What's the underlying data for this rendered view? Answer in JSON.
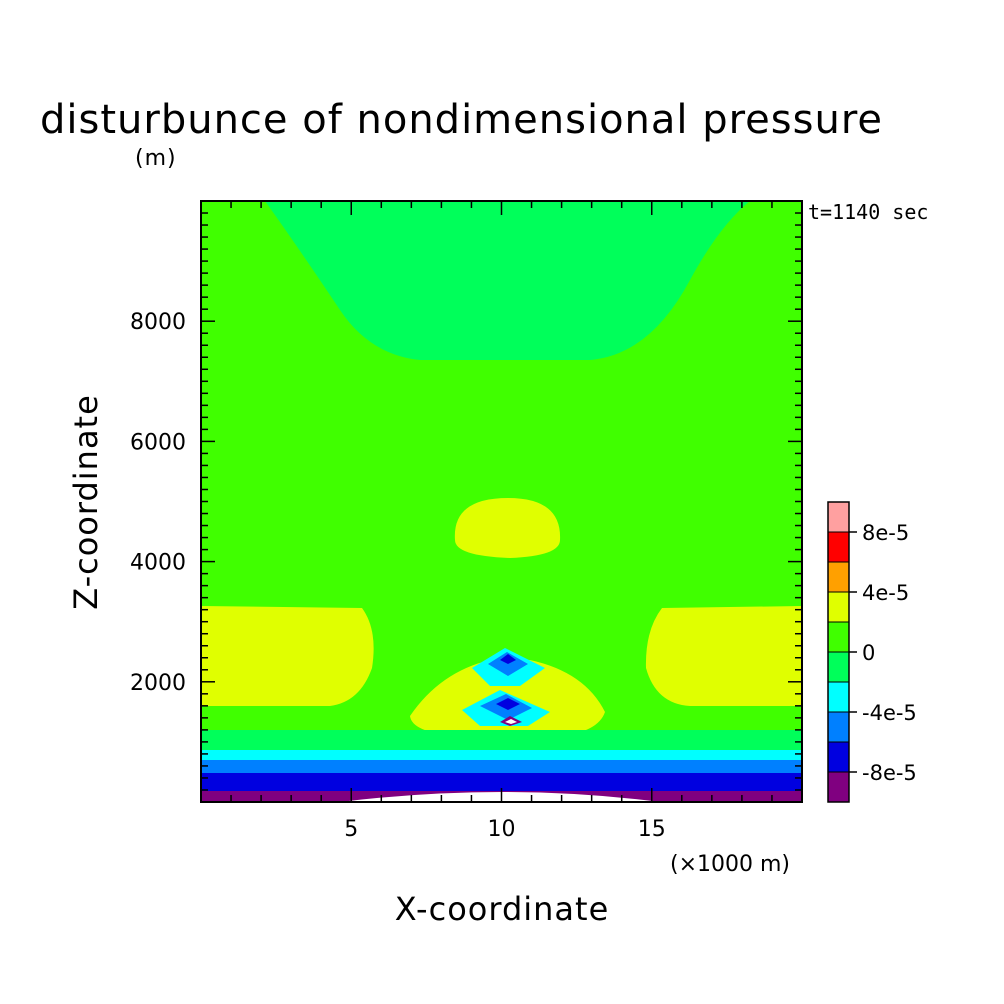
{
  "chart_data": {
    "type": "heatmap",
    "subtype": "filled-contour",
    "title": "disturbunce of nondimensional pressure",
    "z_unit": "(m)",
    "xlabel": "X-coordinate",
    "ylabel": "Z-coordinate",
    "x_unit": "(×1000 m)",
    "time_label": "t=1140 sec",
    "xlim": [
      0,
      20
    ],
    "ylim": [
      0,
      10000
    ],
    "x_ticks": [
      5,
      10,
      15
    ],
    "y_ticks": [
      2000,
      4000,
      6000,
      8000
    ],
    "x_tick_labels": [
      "5",
      "10",
      "15"
    ],
    "y_tick_labels": [
      "2000",
      "4000",
      "6000",
      "8000"
    ],
    "colorbar": {
      "levels": [
        -0.0001,
        -8e-05,
        -6e-05,
        -4e-05,
        -2e-05,
        0,
        2e-05,
        4e-05,
        6e-05,
        8e-05,
        0.0001
      ],
      "colors": [
        "#800080",
        "#0000e0",
        "#0080ff",
        "#00ffff",
        "#00ff5a",
        "#40ff00",
        "#e0ff00",
        "#ffa000",
        "#ff0000",
        "#ffa0a0"
      ],
      "tick_values": [
        -8e-05,
        -4e-05,
        0,
        4e-05,
        8e-05
      ],
      "tick_labels": [
        "-8e-5",
        "-4e-5",
        "0",
        "4e-5",
        "8e-5"
      ],
      "below_min_color": "#ffffff"
    },
    "background_value_range": [
      0,
      2e-05
    ]
  }
}
